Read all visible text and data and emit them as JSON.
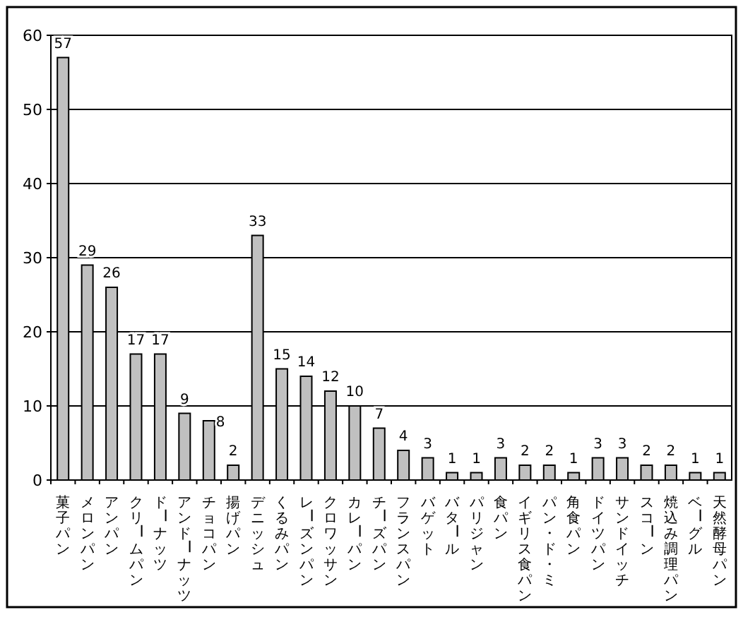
{
  "chart_data": {
    "type": "bar",
    "categories": [
      "菓子パン",
      "メロンパン",
      "アンパン",
      "クリームパン",
      "ドーナッツ",
      "アンドーナッツ",
      "チョコパン",
      "揚げパン",
      "デニッシュ",
      "くるみパン",
      "レーズンパン",
      "クロワッサン",
      "カレーパン",
      "チーズパン",
      "フランスパン",
      "バゲット",
      "バタール",
      "パリジャン",
      "食パン",
      "イギリス食パン",
      "パン・ド・ミ",
      "角食パン",
      "ドイツパン",
      "サンドイッチ",
      "スコーン",
      "焼込み調理パン",
      "ベーグル",
      "天然酵母パン"
    ],
    "values": [
      57,
      29,
      26,
      17,
      17,
      9,
      8,
      2,
      33,
      15,
      14,
      12,
      10,
      7,
      4,
      3,
      1,
      1,
      3,
      2,
      2,
      1,
      3,
      3,
      2,
      2,
      1,
      1
    ],
    "color": "#c0c0c0",
    "ylim": [
      0,
      60
    ],
    "yticks": [
      0,
      10,
      20,
      30,
      40,
      50,
      60
    ],
    "grid": "y",
    "data_labels": true
  }
}
